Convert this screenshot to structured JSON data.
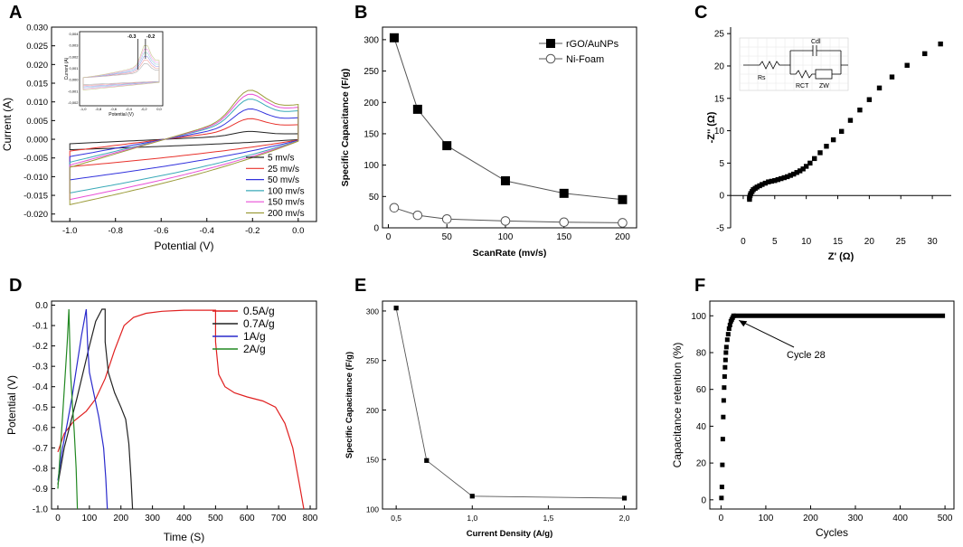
{
  "chart_data": [
    {
      "panel": "A",
      "type": "line",
      "xlabel": "Potential (V)",
      "ylabel": "Current (A)",
      "xlim": [
        -1.08,
        0.08
      ],
      "ylim": [
        -0.022,
        0.03
      ],
      "xticks": [
        -1.0,
        -0.8,
        -0.6,
        -0.4,
        -0.2,
        0.0
      ],
      "xticklabels": [
        "-1.0",
        "-0.8",
        "-0.6",
        "-0.4",
        "-0.2",
        "0.0"
      ],
      "yticks": [
        -0.02,
        -0.015,
        -0.01,
        -0.005,
        0,
        0.005,
        0.01,
        0.015,
        0.02,
        0.025,
        0.03
      ],
      "yticklabels": [
        "-0.020",
        "-0.015",
        "-0.010",
        "-0.005",
        "0.000",
        "0.005",
        "0.010",
        "0.015",
        "0.020",
        "0.025",
        "0.030"
      ],
      "legend": [
        "5 mv/s",
        "25 mv/s",
        "50 mv/s",
        "100 mv/s",
        "150 mv/s",
        "200 mv/s"
      ],
      "series": [
        {
          "name": "5 mv/s",
          "color": "#222222",
          "scale": 0.16
        },
        {
          "name": "25 mv/s",
          "color": "#e8322c",
          "scale": 0.42
        },
        {
          "name": "50 mv/s",
          "color": "#3333dd",
          "scale": 0.62
        },
        {
          "name": "100 mv/s",
          "color": "#3aaab8",
          "scale": 0.82
        },
        {
          "name": "150 mv/s",
          "color": "#e84fd6",
          "scale": 0.92
        },
        {
          "name": "200 mv/s",
          "color": "#9c9c3a",
          "scale": 1.0
        }
      ],
      "inset": {
        "xlabel": "Potential (V)",
        "ylabel": "Current (A)",
        "xticklabels": [
          "-1,0",
          "-0,8",
          "-0,6",
          "-0,4",
          "-0,2",
          "0,0"
        ],
        "yticklabels": [
          "0,004",
          "0,003",
          "0,002",
          "0,001",
          "0,000",
          "-0,001",
          "-0,002"
        ],
        "markers": [
          "-0.3",
          "-0.2"
        ]
      }
    },
    {
      "panel": "B",
      "type": "line",
      "xlabel": "ScanRate (mv/s)",
      "ylabel": "Specific Capacitance (F/g)",
      "xlim": [
        -5,
        212
      ],
      "ylim": [
        0,
        320
      ],
      "xticks": [
        0,
        50,
        100,
        150,
        200
      ],
      "xticklabels": [
        "0",
        "50",
        "100",
        "150",
        "200"
      ],
      "yticks": [
        0,
        50,
        100,
        150,
        200,
        250,
        300
      ],
      "yticklabels": [
        "0",
        "50",
        "100",
        "150",
        "200",
        "250",
        "300"
      ],
      "series": [
        {
          "name": "rGO/AuNPs",
          "marker": "filled-square",
          "x": [
            5,
            25,
            50,
            100,
            150,
            200
          ],
          "values": [
            303,
            189,
            131,
            75,
            55,
            45
          ]
        },
        {
          "name": "Ni-Foam",
          "marker": "open-circle",
          "x": [
            5,
            25,
            50,
            100,
            150,
            200
          ],
          "values": [
            32,
            20,
            14,
            11,
            9,
            8
          ]
        }
      ]
    },
    {
      "panel": "C",
      "type": "scatter",
      "xlabel": "Z' (Ω)",
      "ylabel": "-Z'' (Ω)",
      "xlim": [
        -2,
        33
      ],
      "ylim": [
        -5,
        26
      ],
      "xticks": [
        0,
        5,
        10,
        15,
        20,
        25,
        30
      ],
      "xticklabels": [
        "0",
        "5",
        "10",
        "15",
        "20",
        "25",
        "30"
      ],
      "yticks": [
        -5,
        0,
        5,
        10,
        15,
        20,
        25
      ],
      "yticklabels": [
        "-5",
        "0",
        "5",
        "10",
        "15",
        "20",
        "25"
      ],
      "x": [
        1.0,
        1.0,
        1.1,
        1.2,
        1.4,
        1.6,
        1.9,
        2.2,
        2.6,
        3.0,
        3.5,
        4.0,
        4.5,
        5.0,
        5.5,
        6.0,
        6.5,
        7.0,
        7.5,
        8.0,
        8.5,
        9.0,
        9.5,
        10.0,
        10.6,
        11.3,
        12.2,
        13.2,
        14.3,
        15.6,
        17.0,
        18.5,
        20.0,
        21.6,
        23.6,
        26.0,
        28.8,
        31.3
      ],
      "values": [
        -0.6,
        -0.3,
        0.0,
        0.3,
        0.6,
        0.9,
        1.1,
        1.3,
        1.5,
        1.7,
        1.9,
        2.1,
        2.2,
        2.3,
        2.45,
        2.6,
        2.75,
        2.9,
        3.1,
        3.3,
        3.55,
        3.8,
        4.1,
        4.5,
        5.0,
        5.7,
        6.6,
        7.6,
        8.6,
        9.9,
        11.6,
        13.2,
        14.8,
        16.6,
        18.3,
        20.1,
        21.9,
        23.4
      ],
      "inset": {
        "labels": [
          "Rs",
          "Cdl",
          "RCT",
          "ZW"
        ]
      }
    },
    {
      "panel": "D",
      "type": "line",
      "xlabel": "Time (S)",
      "ylabel": "Potential (V)",
      "xlim": [
        -20,
        820
      ],
      "ylim": [
        -1.0,
        0.02
      ],
      "xticks": [
        0,
        100,
        200,
        300,
        400,
        500,
        600,
        700,
        800
      ],
      "xticklabels": [
        "0",
        "100",
        "200",
        "300",
        "400",
        "500",
        "600",
        "700",
        "800"
      ],
      "yticks": [
        0,
        -0.1,
        -0.2,
        -0.3,
        -0.4,
        -0.5,
        -0.6,
        -0.7,
        -0.8,
        -0.9,
        -1.0
      ],
      "yticklabels": [
        "0.0",
        "-0.1",
        "-0.2",
        "-0.3",
        "-0.4",
        "-0.5",
        "-0.6",
        "-0.7",
        "-0.8",
        "-0.9",
        "-1.0"
      ],
      "legend": [
        "0.5A/g",
        "0.7A/g",
        "1A/g",
        "2A/g"
      ],
      "series": [
        {
          "name": "0.5A/g",
          "color": "#e02020",
          "x": [
            0,
            20,
            50,
            90,
            120,
            150,
            180,
            210,
            240,
            280,
            330,
            400,
            500,
            500,
            510,
            530,
            560,
            600,
            650,
            690,
            720,
            745,
            765,
            780
          ],
          "values": [
            -0.72,
            -0.63,
            -0.57,
            -0.52,
            -0.46,
            -0.36,
            -0.22,
            -0.1,
            -0.06,
            -0.04,
            -0.03,
            -0.025,
            -0.025,
            -0.18,
            -0.34,
            -0.4,
            -0.43,
            -0.45,
            -0.47,
            -0.5,
            -0.58,
            -0.7,
            -0.87,
            -1.0
          ]
        },
        {
          "name": "0.7A/g",
          "color": "#222222",
          "x": [
            0,
            20,
            40,
            60,
            80,
            100,
            120,
            140,
            150,
            150,
            160,
            180,
            200,
            215,
            225,
            232,
            237
          ],
          "values": [
            -0.88,
            -0.7,
            -0.58,
            -0.46,
            -0.33,
            -0.2,
            -0.08,
            -0.02,
            -0.02,
            -0.18,
            -0.33,
            -0.43,
            -0.5,
            -0.56,
            -0.68,
            -0.85,
            -1.0
          ]
        },
        {
          "name": "1A/g",
          "color": "#2a2acc",
          "x": [
            0,
            15,
            30,
            45,
            60,
            75,
            90,
            95,
            100,
            115,
            130,
            145,
            152,
            157
          ],
          "values": [
            -0.86,
            -0.7,
            -0.58,
            -0.45,
            -0.3,
            -0.15,
            -0.02,
            -0.21,
            -0.33,
            -0.44,
            -0.55,
            -0.7,
            -0.85,
            -1.0
          ]
        },
        {
          "name": "2A/g",
          "color": "#228822",
          "x": [
            0,
            10,
            20,
            30,
            35,
            40,
            45,
            52,
            58,
            62
          ],
          "values": [
            -0.9,
            -0.66,
            -0.42,
            -0.18,
            -0.02,
            -0.32,
            -0.46,
            -0.62,
            -0.8,
            -1.0
          ]
        }
      ]
    },
    {
      "panel": "E",
      "type": "line",
      "xlabel": "Current Density (A/g)",
      "ylabel": "Specific Capacitance (F/g)",
      "xlim": [
        0.41,
        2.08
      ],
      "ylim": [
        100,
        310
      ],
      "xticks": [
        0.5,
        1.0,
        1.5,
        2.0
      ],
      "xticklabels": [
        "0,5",
        "1,0",
        "1,5",
        "2,0"
      ],
      "yticks": [
        100,
        150,
        200,
        250,
        300
      ],
      "yticklabels": [
        "100",
        "150",
        "200",
        "250",
        "300"
      ],
      "x": [
        0.5,
        0.7,
        1.0,
        2.0
      ],
      "values": [
        303,
        149,
        113,
        111
      ]
    },
    {
      "panel": "F",
      "type": "scatter",
      "xlabel": "Cycles",
      "ylabel": "Capacitance retention (%)",
      "xlim": [
        -25,
        520
      ],
      "ylim": [
        -5,
        108
      ],
      "xticks": [
        0,
        100,
        200,
        300,
        400,
        500
      ],
      "xticklabels": [
        "0",
        "100",
        "200",
        "300",
        "400",
        "500"
      ],
      "yticks": [
        0,
        20,
        40,
        60,
        80,
        100
      ],
      "yticklabels": [
        "0",
        "20",
        "40",
        "60",
        "80",
        "100"
      ],
      "annotation": "Cycle 28",
      "annotation_target": [
        28,
        100
      ],
      "x": [
        1,
        2,
        3,
        4,
        5,
        6,
        7,
        8,
        9,
        10,
        11,
        12,
        14,
        16,
        18,
        20,
        22,
        24,
        26,
        28
      ],
      "values": [
        1,
        7,
        19,
        33,
        45,
        54,
        61,
        67,
        72,
        76,
        80,
        83,
        87,
        90,
        93,
        95,
        97,
        98,
        99,
        100
      ],
      "plateau": {
        "from": 28,
        "to": 500,
        "value": 100
      }
    }
  ],
  "panel_letters": [
    "A",
    "B",
    "C",
    "D",
    "E",
    "F"
  ]
}
